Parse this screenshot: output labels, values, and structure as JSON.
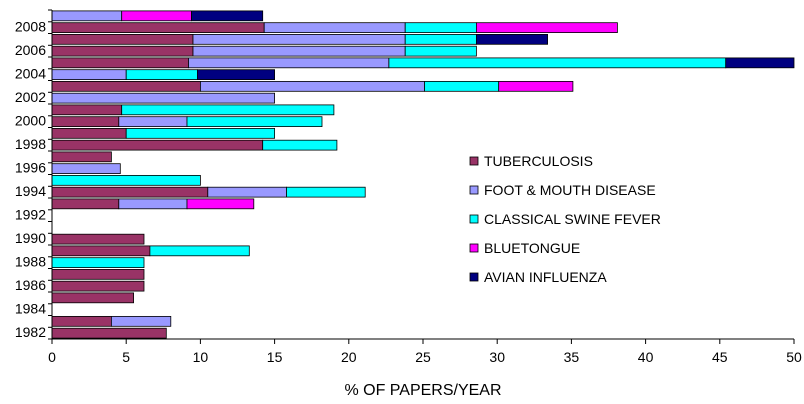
{
  "chart_data": {
    "type": "bar",
    "orientation": "horizontal",
    "stacked": true,
    "title": "",
    "xlabel": "% OF PAPERS/YEAR",
    "ylabel": "",
    "xlim": [
      0,
      50
    ],
    "x_ticks": [
      0,
      5,
      10,
      15,
      20,
      25,
      30,
      35,
      40,
      45,
      50
    ],
    "categories": [
      "1982",
      "1983",
      "1984",
      "1985",
      "1986",
      "1987",
      "1988",
      "1989",
      "1990",
      "1991",
      "1992",
      "1993",
      "1994",
      "1995",
      "1996",
      "1997",
      "1998",
      "1999",
      "2000",
      "2001",
      "2002",
      "2003",
      "2004",
      "2005",
      "2006",
      "2007",
      "2008",
      "2009"
    ],
    "y_tick_labels": [
      "1982",
      "1984",
      "1986",
      "1988",
      "1990",
      "1992",
      "1994",
      "1996",
      "1998",
      "2000",
      "2002",
      "2004",
      "2006",
      "2008"
    ],
    "grid": false,
    "legend_position": "right",
    "series": [
      {
        "name": "TUBERCULOSIS",
        "color": "#993366",
        "values": [
          7.7,
          4.0,
          0,
          5.5,
          6.2,
          6.2,
          0,
          6.6,
          6.2,
          0,
          0,
          4.5,
          10.5,
          0,
          0,
          4.0,
          14.2,
          5.0,
          4.5,
          4.7,
          0,
          10.0,
          0,
          9.2,
          9.5,
          9.5,
          14.3,
          0
        ]
      },
      {
        "name": "FOOT & MOUTH DISEASE",
        "color": "#9999FF",
        "values": [
          0,
          4.0,
          0,
          0,
          0,
          0,
          0,
          0,
          0,
          0,
          0,
          4.6,
          5.3,
          0,
          4.6,
          0,
          0,
          0,
          4.6,
          0,
          15.0,
          15.1,
          5.0,
          13.5,
          14.3,
          14.3,
          9.5,
          4.7
        ]
      },
      {
        "name": "CLASSICAL SWINE FEVER",
        "color": "#00FFFF",
        "values": [
          0,
          0,
          0,
          0,
          0,
          0,
          6.2,
          6.7,
          0,
          0,
          0,
          0,
          5.3,
          10.0,
          0,
          0,
          5.0,
          10.0,
          9.1,
          14.3,
          0,
          5.0,
          4.8,
          22.7,
          4.8,
          4.8,
          4.8,
          0
        ]
      },
      {
        "name": "BLUETONGUE",
        "color": "#FF00FF",
        "values": [
          0,
          0,
          0,
          0,
          0,
          0,
          0,
          0,
          0,
          0,
          0,
          4.5,
          0,
          0,
          0,
          0,
          0,
          0,
          0,
          0,
          0,
          5.0,
          0,
          0,
          0,
          0,
          9.5,
          4.7
        ]
      },
      {
        "name": "AVIAN INFLUENZA",
        "color": "#000080",
        "values": [
          0,
          0,
          0,
          0,
          0,
          0,
          0,
          0,
          0,
          0,
          0,
          0,
          0,
          0,
          0,
          0,
          0,
          0,
          0,
          0,
          0,
          0,
          5.2,
          4.6,
          0,
          4.8,
          0,
          4.8
        ]
      }
    ]
  }
}
